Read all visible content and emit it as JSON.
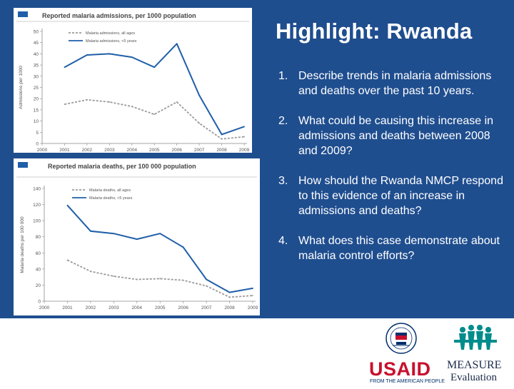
{
  "slide": {
    "title": "Highlight: Rwanda",
    "questions": [
      {
        "num": "1.",
        "text": "Describe trends in malaria admissions and deaths over the past 10 years."
      },
      {
        "num": "2.",
        "text": "What could be causing this increase in admissions and deaths between 2008 and 2009?"
      },
      {
        "num": "3.",
        "text": "How should the Rwanda NMCP respond to this evidence of an increase in admissions and deaths?"
      },
      {
        "num": "4.",
        "text": "What does this case demonstrate about malaria control efforts?"
      }
    ],
    "colors": {
      "panel": "#1f4e8f",
      "card": "#ffffff",
      "series_all": "#9a9a9a",
      "series_u5": "#1f5fa8",
      "usaid_red": "#c8102e",
      "usaid_blue": "#002f6c",
      "measure_teal": "#008c8c"
    }
  },
  "logos": {
    "usaid": {
      "wordmark": "USAID",
      "tagline": "FROM THE AMERICAN PEOPLE"
    },
    "measure": {
      "line1": "MEASURE",
      "line2": "Evaluation"
    }
  },
  "chart_data": [
    {
      "type": "line",
      "title": "Reported malaria admissions, per 1000 population",
      "ylabel": "Admissions per 1000",
      "xlabel": "",
      "x": [
        "2000",
        "2001",
        "2002",
        "2003",
        "2004",
        "2005",
        "2006",
        "2007",
        "2008",
        "2009"
      ],
      "ylim": [
        0,
        50
      ],
      "yticks": [
        0,
        5,
        10,
        15,
        20,
        25,
        30,
        35,
        40,
        45,
        50
      ],
      "legend_position": "top-left",
      "series": [
        {
          "name": "Malaria admissions, all ages",
          "style": "dashed",
          "color": "#9a9a9a",
          "values": [
            null,
            17.5,
            19.5,
            18.5,
            16.5,
            13.0,
            18.5,
            9.0,
            2.0,
            3.0
          ]
        },
        {
          "name": "Malaria admissions, <5 years",
          "style": "solid",
          "color": "#1f5fa8",
          "values": [
            null,
            34.0,
            39.5,
            40.0,
            38.5,
            34.0,
            44.5,
            21.5,
            4.0,
            7.5
          ]
        }
      ]
    },
    {
      "type": "line",
      "title": "Reported malaria deaths, per 100 000 population",
      "ylabel": "Malaria deaths per 100 000",
      "xlabel": "",
      "x": [
        "2000",
        "2001",
        "2002",
        "2003",
        "2004",
        "2005",
        "2006",
        "2007",
        "2008",
        "2009"
      ],
      "ylim": [
        0,
        140
      ],
      "yticks": [
        0,
        20,
        40,
        60,
        80,
        100,
        120,
        140
      ],
      "legend_position": "top-left",
      "series": [
        {
          "name": "Malaria deaths, all ages",
          "style": "dashed",
          "color": "#9a9a9a",
          "values": [
            null,
            51,
            37,
            31,
            27,
            28,
            26,
            19,
            5,
            7
          ]
        },
        {
          "name": "Malaria deaths, <5 years",
          "style": "solid",
          "color": "#1f5fa8",
          "values": [
            null,
            119,
            87,
            84,
            77,
            84,
            67,
            27,
            11,
            16
          ]
        }
      ]
    }
  ]
}
